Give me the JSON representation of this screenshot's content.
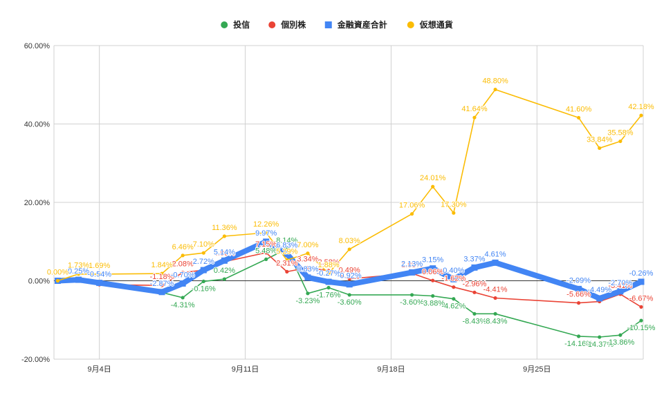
{
  "chart_data": {
    "type": "line",
    "title": "",
    "xlabel": "",
    "ylabel": "",
    "ylim": [
      -20,
      60
    ],
    "x_range": [
      "2023-09-02",
      "2023-09-30"
    ],
    "x_ticks": [
      {
        "date": "2023-09-04",
        "label": "9月4日"
      },
      {
        "date": "2023-09-11",
        "label": "9月11日"
      },
      {
        "date": "2023-09-18",
        "label": "9月18日"
      },
      {
        "date": "2023-09-25",
        "label": "9月25日"
      }
    ],
    "y_ticks": [
      {
        "value": -20,
        "label": "-20.00%"
      },
      {
        "value": 0,
        "label": "0.00%"
      },
      {
        "value": 20,
        "label": "20.00%"
      },
      {
        "value": 40,
        "label": "40.00%"
      },
      {
        "value": 60,
        "label": "60.00%"
      }
    ],
    "grid": true,
    "legend_position": "top",
    "series": [
      {
        "name": "投信",
        "color": "#34a853",
        "marker": "circle",
        "points": [
          {
            "x": "2023-09-02",
            "y": 0.0
          },
          {
            "x": "2023-09-03",
            "y": 0.0
          },
          {
            "x": "2023-09-04",
            "y": -0.5
          },
          {
            "x": "2023-09-07",
            "y": -3.0
          },
          {
            "x": "2023-09-08",
            "y": -4.31,
            "label": "-4.31%"
          },
          {
            "x": "2023-09-09",
            "y": -0.16,
            "label": "-0.16%"
          },
          {
            "x": "2023-09-10",
            "y": 0.42,
            "label": "0.42%"
          },
          {
            "x": "2023-09-12",
            "y": 5.48,
            "label": "5.48%"
          },
          {
            "x": "2023-09-13",
            "y": 8.14,
            "label": "8.14%"
          },
          {
            "x": "2023-09-14",
            "y": -3.23,
            "label": "-3.23%"
          },
          {
            "x": "2023-09-15",
            "y": -1.76,
            "label": "-1.76%"
          },
          {
            "x": "2023-09-16",
            "y": -3.6,
            "label": "-3.60%"
          },
          {
            "x": "2023-09-19",
            "y": -3.6,
            "label": "-3.60%"
          },
          {
            "x": "2023-09-20",
            "y": -3.88,
            "label": "-3.88%"
          },
          {
            "x": "2023-09-21",
            "y": -4.62,
            "label": "-4.62%"
          },
          {
            "x": "2023-09-22",
            "y": -8.43,
            "label": "-8.43%"
          },
          {
            "x": "2023-09-23",
            "y": -8.43,
            "label": "-8.43%"
          },
          {
            "x": "2023-09-27",
            "y": -14.16,
            "label": "-14.16%"
          },
          {
            "x": "2023-09-28",
            "y": -14.37,
            "label": "-14.37%"
          },
          {
            "x": "2023-09-29",
            "y": -13.86,
            "label": "-13.86%"
          },
          {
            "x": "2023-09-30",
            "y": -10.15,
            "label": "-10.15%"
          }
        ]
      },
      {
        "name": "個別株",
        "color": "#ea4335",
        "marker": "circle",
        "points": [
          {
            "x": "2023-09-02",
            "y": 0.0
          },
          {
            "x": "2023-09-03",
            "y": 0.0
          },
          {
            "x": "2023-09-04",
            "y": -1.0
          },
          {
            "x": "2023-09-07",
            "y": -1.18,
            "label": "-1.18%"
          },
          {
            "x": "2023-09-08",
            "y": 2.08,
            "label": "2.08%"
          },
          {
            "x": "2023-09-09",
            "y": 2.72,
            "label": "2.72%"
          },
          {
            "x": "2023-09-10",
            "y": 4.86,
            "label": "4.86%"
          },
          {
            "x": "2023-09-12",
            "y": 7.15,
            "label": "7.15%"
          },
          {
            "x": "2023-09-13",
            "y": 2.31,
            "label": "2.31%"
          },
          {
            "x": "2023-09-14",
            "y": 3.34,
            "label": "3.34%"
          },
          {
            "x": "2023-09-15",
            "y": 2.58,
            "label": "2.58%"
          },
          {
            "x": "2023-09-16",
            "y": 0.49,
            "label": "0.49%"
          },
          {
            "x": "2023-09-19",
            "y": 1.88,
            "label": "1.88%"
          },
          {
            "x": "2023-09-20",
            "y": 0.06,
            "label": "0.06%"
          },
          {
            "x": "2023-09-21",
            "y": -1.62,
            "label": "-1.62%"
          },
          {
            "x": "2023-09-22",
            "y": -2.96,
            "label": "-2.96%"
          },
          {
            "x": "2023-09-23",
            "y": -4.41,
            "label": "-4.41%"
          },
          {
            "x": "2023-09-27",
            "y": -5.66,
            "label": "-5.66%"
          },
          {
            "x": "2023-09-28",
            "y": -5.3
          },
          {
            "x": "2023-09-29",
            "y": -3.41,
            "label": "-3.41%"
          },
          {
            "x": "2023-09-30",
            "y": -6.67,
            "label": "-6.67%"
          }
        ]
      },
      {
        "name": "金融資産合計",
        "color": "#4285f4",
        "marker": "square",
        "points": [
          {
            "x": "2023-09-02",
            "y": 0.0
          },
          {
            "x": "2023-09-03",
            "y": 0.25,
            "label": "0.25%"
          },
          {
            "x": "2023-09-04",
            "y": -0.54,
            "label": "-0.54%"
          },
          {
            "x": "2023-09-07",
            "y": -2.87,
            "label": "-2.87%"
          },
          {
            "x": "2023-09-08",
            "y": -0.7,
            "label": "-0.70%"
          },
          {
            "x": "2023-09-09",
            "y": 2.72,
            "label": "2.72%"
          },
          {
            "x": "2023-09-10",
            "y": 5.14,
            "label": "5.14%"
          },
          {
            "x": "2023-09-12",
            "y": 9.97,
            "label": "9.97%"
          },
          {
            "x": "2023-09-13",
            "y": 6.83,
            "label": "6.83%"
          },
          {
            "x": "2023-09-14",
            "y": 0.83,
            "label": "0.83%"
          },
          {
            "x": "2023-09-15",
            "y": -0.27,
            "label": "-0.27%"
          },
          {
            "x": "2023-09-16",
            "y": -0.92,
            "label": "-0.92%"
          },
          {
            "x": "2023-09-19",
            "y": 2.13,
            "label": "2.13%"
          },
          {
            "x": "2023-09-20",
            "y": 3.15,
            "label": "3.15%"
          },
          {
            "x": "2023-09-21",
            "y": 0.4,
            "label": "0.40%"
          },
          {
            "x": "2023-09-22",
            "y": 3.37,
            "label": "3.37%"
          },
          {
            "x": "2023-09-23",
            "y": 4.61,
            "label": "4.61%"
          },
          {
            "x": "2023-09-27",
            "y": -2.09,
            "label": "-2.09%"
          },
          {
            "x": "2023-09-28",
            "y": -4.49,
            "label": "-4.49%"
          },
          {
            "x": "2023-09-29",
            "y": -2.7,
            "label": "-2.70%"
          },
          {
            "x": "2023-09-30",
            "y": -0.26,
            "label": "-0.26%"
          }
        ]
      },
      {
        "name": "仮想通貨",
        "color": "#fbbc04",
        "marker": "circle",
        "points": [
          {
            "x": "2023-09-02",
            "y": 0.0,
            "label": "0.00%"
          },
          {
            "x": "2023-09-03",
            "y": 1.73,
            "label": "1.73%"
          },
          {
            "x": "2023-09-04",
            "y": 1.69,
            "label": "1.69%"
          },
          {
            "x": "2023-09-07",
            "y": 1.84,
            "label": "1.84%"
          },
          {
            "x": "2023-09-08",
            "y": 6.46,
            "label": "6.46%"
          },
          {
            "x": "2023-09-09",
            "y": 7.1,
            "label": "7.10%"
          },
          {
            "x": "2023-09-10",
            "y": 11.36,
            "label": "11.36%"
          },
          {
            "x": "2023-09-12",
            "y": 12.26,
            "label": "12.26%"
          },
          {
            "x": "2023-09-13",
            "y": 5.29,
            "label": "5.29%"
          },
          {
            "x": "2023-09-14",
            "y": 7.0,
            "label": "7.00%"
          },
          {
            "x": "2023-09-15",
            "y": 1.88,
            "label": "1.88%"
          },
          {
            "x": "2023-09-16",
            "y": 8.03,
            "label": "8.03%"
          },
          {
            "x": "2023-09-19",
            "y": 17.06,
            "label": "17.06%"
          },
          {
            "x": "2023-09-20",
            "y": 24.01,
            "label": "24.01%"
          },
          {
            "x": "2023-09-21",
            "y": 17.3,
            "label": "17.30%"
          },
          {
            "x": "2023-09-22",
            "y": 41.64,
            "label": "41.64%"
          },
          {
            "x": "2023-09-23",
            "y": 48.8,
            "label": "48.80%"
          },
          {
            "x": "2023-09-27",
            "y": 41.6,
            "label": "41.60%"
          },
          {
            "x": "2023-09-28",
            "y": 33.84,
            "label": "33.84%"
          },
          {
            "x": "2023-09-29",
            "y": 35.58,
            "label": "35.58%"
          },
          {
            "x": "2023-09-30",
            "y": 42.18,
            "label": "42.18%"
          }
        ]
      }
    ]
  }
}
